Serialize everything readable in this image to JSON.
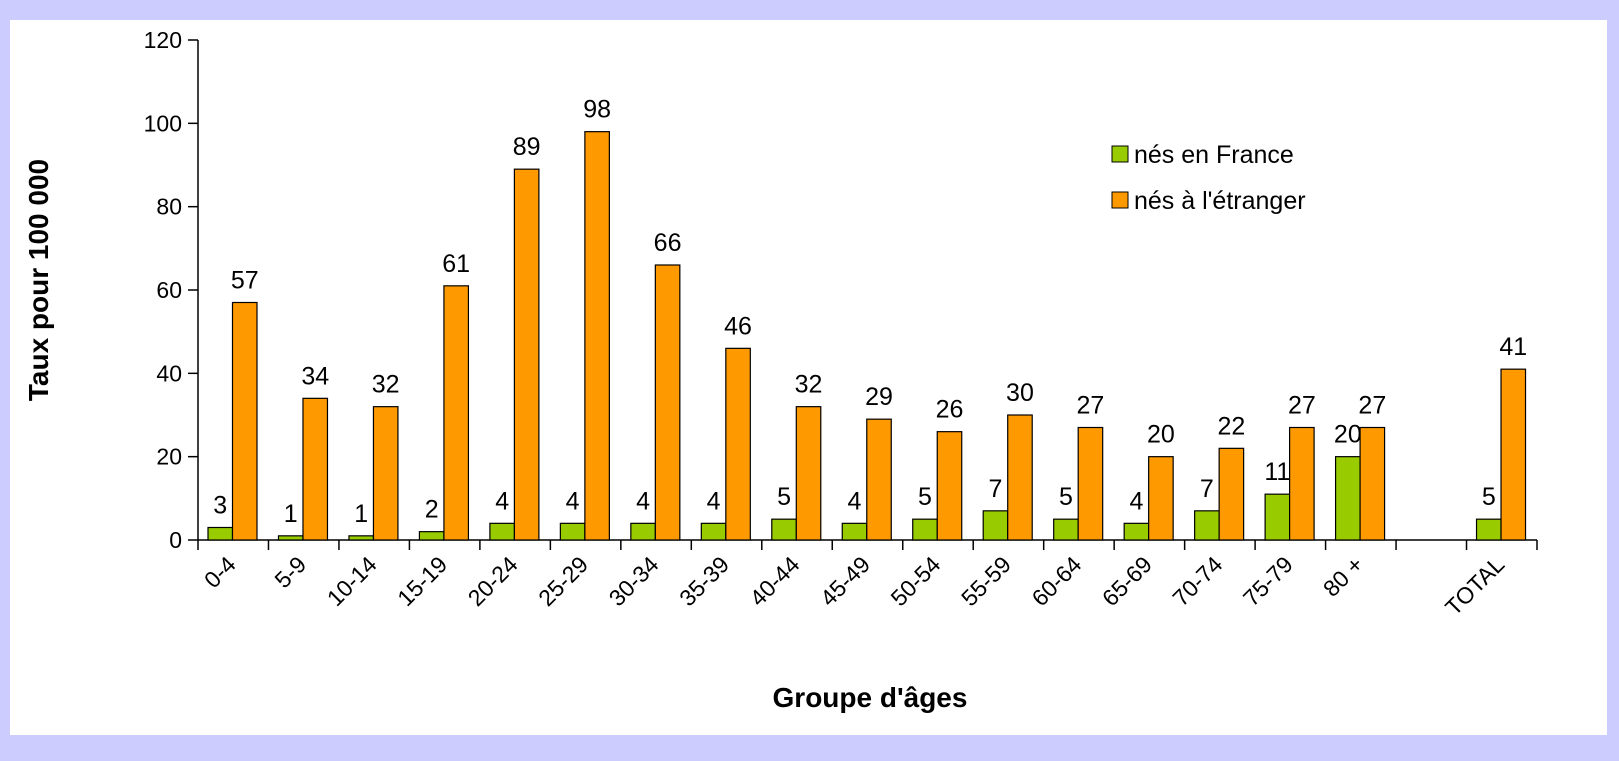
{
  "chart_data": {
    "type": "bar",
    "x_label": "Groupe d'âges",
    "y_label": "Taux pour 100 000",
    "categories": [
      "0-4",
      "5-9",
      "10-14",
      "15-19",
      "20-24",
      "25-29",
      "30-34",
      "35-39",
      "40-44",
      "45-49",
      "50-54",
      "55-59",
      "60-64",
      "65-69",
      "70-74",
      "75-79",
      "80 +",
      null,
      "TOTAL"
    ],
    "series": [
      {
        "name": "nés en France",
        "color": "#99cc00",
        "values": [
          3,
          1,
          1,
          2,
          4,
          4,
          4,
          4,
          5,
          4,
          5,
          7,
          5,
          4,
          7,
          11,
          20,
          null,
          5
        ]
      },
      {
        "name": "nés à l'étranger",
        "color": "#ff9900",
        "values": [
          57,
          34,
          32,
          61,
          89,
          98,
          66,
          46,
          32,
          29,
          26,
          30,
          27,
          20,
          22,
          27,
          27,
          null,
          41
        ]
      }
    ],
    "ylim": [
      0,
      120
    ],
    "yticks": [
      0,
      20,
      40,
      60,
      80,
      100,
      120
    ],
    "grid": false
  }
}
